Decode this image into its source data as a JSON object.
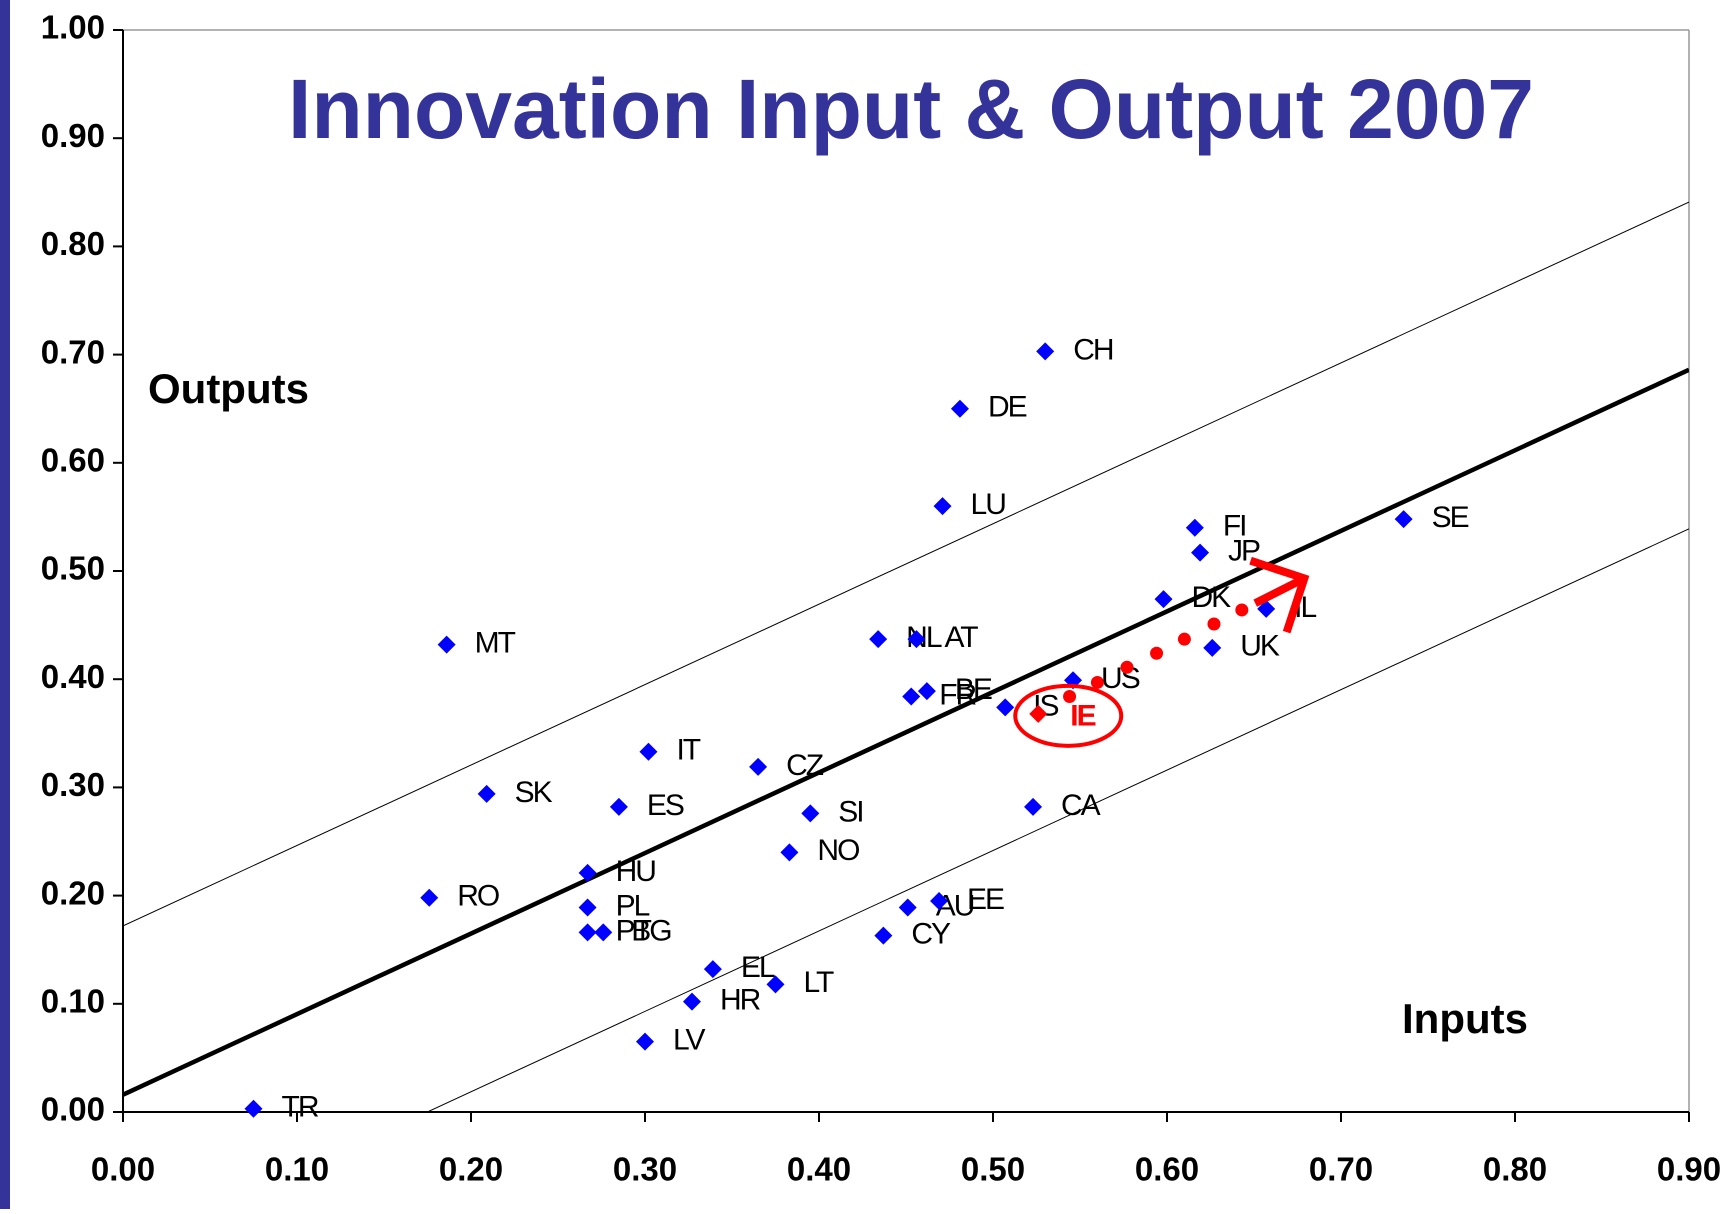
{
  "chart_data": {
    "type": "scatter",
    "title": "Innovation Input & Output 2007",
    "annotations": [
      "Outputs",
      "Inputs"
    ],
    "xlim": [
      0,
      0.9
    ],
    "ylim": [
      0,
      1
    ],
    "xticks": [
      {
        "value": 0,
        "label": "0.00"
      },
      {
        "value": 0.1,
        "label": "0.10"
      },
      {
        "value": 0.2,
        "label": "0.20"
      },
      {
        "value": 0.3,
        "label": "0.30"
      },
      {
        "value": 0.4,
        "label": "0.40"
      },
      {
        "value": 0.5,
        "label": "0.50"
      },
      {
        "value": 0.6,
        "label": "0.60"
      },
      {
        "value": 0.7,
        "label": "0.70"
      },
      {
        "value": 0.8,
        "label": "0.80"
      },
      {
        "value": 0.9,
        "label": "0.90"
      }
    ],
    "yticks": [
      {
        "value": 0,
        "label": "0.00"
      },
      {
        "value": 0.1,
        "label": "0.10"
      },
      {
        "value": 0.2,
        "label": "0.20"
      },
      {
        "value": 0.3,
        "label": "0.30"
      },
      {
        "value": 0.4,
        "label": "0.40"
      },
      {
        "value": 0.5,
        "label": "0.50"
      },
      {
        "value": 0.6,
        "label": "0.60"
      },
      {
        "value": 0.7,
        "label": "0.70"
      },
      {
        "value": 0.8,
        "label": "0.80"
      },
      {
        "value": 0.9,
        "label": "0.90"
      },
      {
        "value": 1,
        "label": "1.00"
      }
    ],
    "series": [
      {
        "color": "#0000ff",
        "labels": [
          "CH",
          "DE",
          "LU",
          "FI",
          "JP",
          "SE",
          "DK",
          "IL",
          "UK",
          "US",
          "IS",
          "BE",
          "FR",
          "NL",
          "AT",
          "MT",
          "IT",
          "CZ",
          "SK",
          "ES",
          "SI",
          "CA",
          "NO",
          "HU",
          "RO",
          "PL",
          "PT",
          "BG",
          "AU",
          "EE",
          "CY",
          "EL",
          "LT",
          "HR",
          "LV",
          "TR"
        ],
        "x": [
          0.53,
          0.481,
          0.471,
          0.616,
          0.619,
          0.736,
          0.598,
          0.657,
          0.626,
          0.546,
          0.507,
          0.462,
          0.453,
          0.434,
          0.456,
          0.186,
          0.302,
          0.365,
          0.209,
          0.285,
          0.395,
          0.523,
          0.383,
          0.267,
          0.176,
          0.267,
          0.267,
          0.276,
          0.451,
          0.469,
          0.437,
          0.339,
          0.375,
          0.327,
          0.3,
          0.075
        ],
        "values": [
          0.703,
          0.65,
          0.56,
          0.54,
          0.517,
          0.548,
          0.474,
          0.465,
          0.429,
          0.399,
          0.374,
          0.389,
          0.384,
          0.437,
          0.437,
          0.432,
          0.333,
          0.319,
          0.294,
          0.282,
          0.276,
          0.282,
          0.24,
          0.221,
          0.198,
          0.189,
          0.166,
          0.166,
          0.189,
          0.195,
          0.163,
          0.132,
          0.118,
          0.102,
          0.065,
          0.003
        ]
      },
      {
        "color": "#ff0000",
        "labels": [
          "IE"
        ],
        "x": [
          0.526
        ],
        "values": [
          0.368
        ]
      },
      {
        "color": "#ff0000",
        "x": [
          0.544,
          0.56,
          0.577,
          0.594,
          0.61,
          0.627,
          0.643
        ],
        "values": [
          0.384,
          0.397,
          0.411,
          0.424,
          0.437,
          0.451,
          0.464
        ]
      }
    ],
    "trend_lines": [
      {
        "x": [
          0,
          0.9
        ],
        "y": [
          0.016,
          0.686
        ]
      },
      {
        "x": [
          0,
          0.9
        ],
        "y": [
          0.172,
          0.841
        ]
      },
      {
        "x": [
          0,
          0.9
        ],
        "y": [
          -0.13,
          0.539
        ]
      }
    ]
  }
}
